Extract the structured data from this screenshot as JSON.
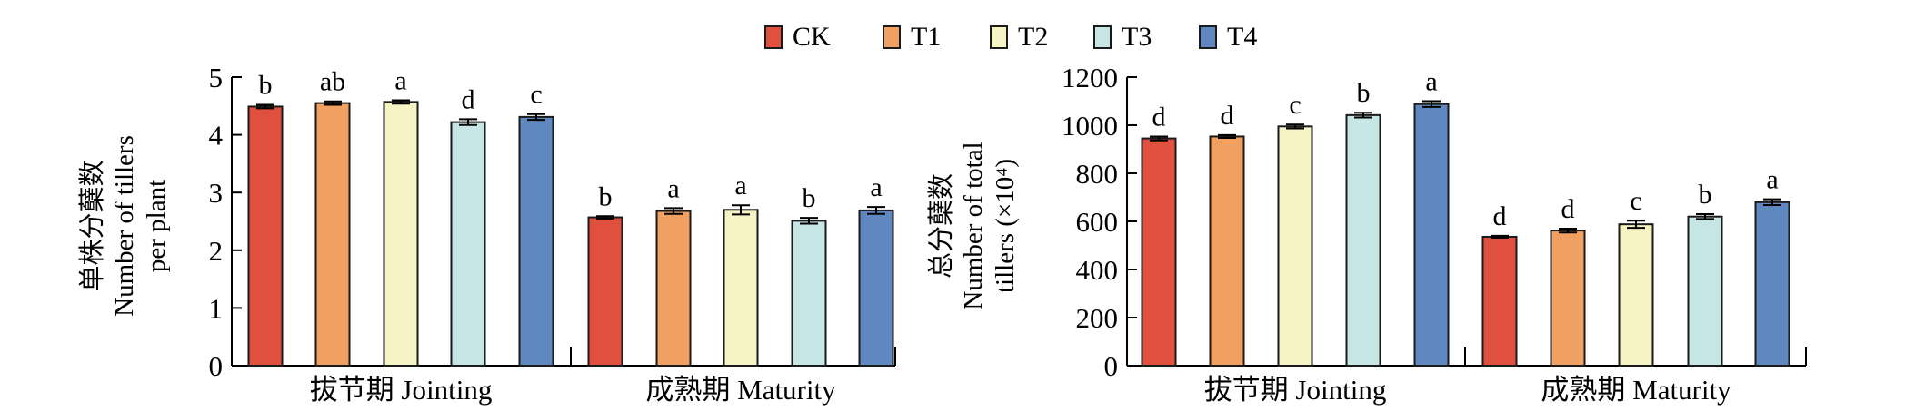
{
  "legend": [
    {
      "label": "CK",
      "color": "#e0503f"
    },
    {
      "label": "T1",
      "color": "#f0a060"
    },
    {
      "label": "T2",
      "color": "#f6f4c4"
    },
    {
      "label": "T3",
      "color": "#c6e6e6"
    },
    {
      "label": "T4",
      "color": "#6088c0"
    }
  ],
  "chart_data": [
    {
      "type": "bar",
      "ylabel_cn": "单株分蘖数",
      "ylabel_en_line1": "Number of tillers",
      "ylabel_en_line2": "per plant",
      "ylim": [
        0,
        5
      ],
      "yticks": [
        0,
        1,
        2,
        3,
        4,
        5
      ],
      "ytick_labels": [
        "0",
        "1",
        "2",
        "3",
        "4",
        "5"
      ],
      "categories": [
        "拔节期 Jointing",
        "成熟期 Maturity"
      ],
      "series": [
        {
          "name": "CK",
          "values": [
            4.49,
            2.57
          ],
          "errors": [
            0.03,
            0.02
          ],
          "letters": [
            "b",
            "b"
          ]
        },
        {
          "name": "T1",
          "values": [
            4.55,
            2.68
          ],
          "errors": [
            0.03,
            0.05
          ],
          "letters": [
            "ab",
            "a"
          ]
        },
        {
          "name": "T2",
          "values": [
            4.57,
            2.7
          ],
          "errors": [
            0.03,
            0.08
          ],
          "letters": [
            "a",
            "a"
          ]
        },
        {
          "name": "T3",
          "values": [
            4.22,
            2.51
          ],
          "errors": [
            0.05,
            0.05
          ],
          "letters": [
            "d",
            "b"
          ]
        },
        {
          "name": "T4",
          "values": [
            4.31,
            2.69
          ],
          "errors": [
            0.05,
            0.06
          ],
          "letters": [
            "c",
            "a"
          ]
        }
      ]
    },
    {
      "type": "bar",
      "ylabel_cn": "总分蘖数",
      "ylabel_en_line1": "Number of total",
      "ylabel_en_line2": "tillers (×10⁴)",
      "ylim": [
        0,
        1200
      ],
      "yticks": [
        0,
        200,
        400,
        600,
        800,
        1000,
        1200
      ],
      "ytick_labels": [
        "0",
        "200",
        "400",
        "600",
        "800",
        "1000",
        "1200"
      ],
      "categories": [
        "拔节期 Jointing",
        "成熟期 Maturity"
      ],
      "series": [
        {
          "name": "CK",
          "values": [
            945,
            536
          ],
          "errors": [
            8,
            4
          ],
          "letters": [
            "d",
            "d"
          ]
        },
        {
          "name": "T1",
          "values": [
            953,
            562
          ],
          "errors": [
            6,
            8
          ],
          "letters": [
            "d",
            "d"
          ]
        },
        {
          "name": "T2",
          "values": [
            995,
            588
          ],
          "errors": [
            8,
            15
          ],
          "letters": [
            "c",
            "c"
          ]
        },
        {
          "name": "T3",
          "values": [
            1042,
            620
          ],
          "errors": [
            10,
            10
          ],
          "letters": [
            "b",
            "b"
          ]
        },
        {
          "name": "T4",
          "values": [
            1088,
            680
          ],
          "errors": [
            12,
            12
          ],
          "letters": [
            "a",
            "a"
          ]
        }
      ]
    }
  ]
}
